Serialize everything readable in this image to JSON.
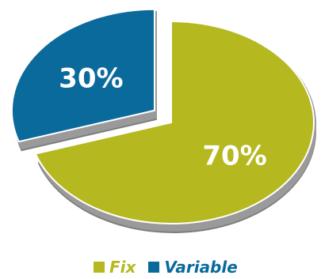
{
  "chart_data": {
    "type": "pie",
    "categories": [
      "Fix",
      "Variable"
    ],
    "values": [
      70,
      30
    ],
    "data_labels": [
      "70%",
      "30%"
    ],
    "colors": [
      "#b5b81f",
      "#0a6a9c"
    ],
    "exploded": "Variable",
    "legend_position": "bottom",
    "title": ""
  },
  "legend": {
    "items": [
      {
        "label": "Fix",
        "color": "#b5b81f"
      },
      {
        "label": "Variable",
        "color": "#0a6a9c"
      }
    ]
  }
}
